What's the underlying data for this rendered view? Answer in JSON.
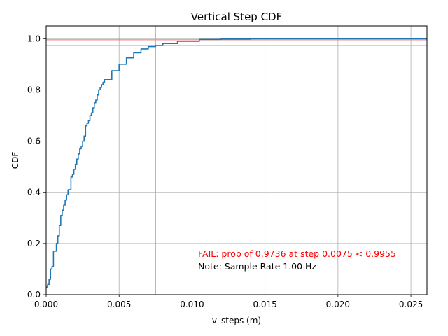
{
  "chart_data": {
    "type": "line",
    "title": "Vertical Step CDF",
    "xlabel": "v_steps (m)",
    "ylabel": "CDF",
    "xlim": [
      0,
      0.0261
    ],
    "ylim": [
      0,
      1.05
    ],
    "grid": true,
    "x_ticks": [
      {
        "value": 0.0,
        "label": "0.000"
      },
      {
        "value": 0.005,
        "label": "0.005"
      },
      {
        "value": 0.01,
        "label": "0.010"
      },
      {
        "value": 0.015,
        "label": "0.015"
      },
      {
        "value": 0.02,
        "label": "0.020"
      },
      {
        "value": 0.025,
        "label": "0.025"
      }
    ],
    "y_ticks": [
      {
        "value": 0.0,
        "label": "0.0"
      },
      {
        "value": 0.2,
        "label": "0.2"
      },
      {
        "value": 0.4,
        "label": "0.4"
      },
      {
        "value": 0.6,
        "label": "0.6"
      },
      {
        "value": 0.8,
        "label": "0.8"
      },
      {
        "value": 1.0,
        "label": "1.0"
      }
    ],
    "series": [
      {
        "color": "#1f77b4",
        "step": true,
        "points": [
          [
            0.0,
            0.03
          ],
          [
            0.0001,
            0.04
          ],
          [
            0.0002,
            0.06
          ],
          [
            0.0003,
            0.08
          ],
          [
            0.0003,
            0.1
          ],
          [
            0.0004,
            0.11
          ],
          [
            0.0005,
            0.13
          ],
          [
            0.0005,
            0.17
          ],
          [
            0.0007,
            0.18
          ],
          [
            0.0007,
            0.2
          ],
          [
            0.0008,
            0.21
          ],
          [
            0.0008,
            0.23
          ],
          [
            0.0009,
            0.25
          ],
          [
            0.0009,
            0.27
          ],
          [
            0.001,
            0.29
          ],
          [
            0.001,
            0.31
          ],
          [
            0.0011,
            0.33
          ],
          [
            0.0012,
            0.35
          ],
          [
            0.0013,
            0.37
          ],
          [
            0.0014,
            0.39
          ],
          [
            0.0015,
            0.41
          ],
          [
            0.0017,
            0.42
          ],
          [
            0.0017,
            0.46
          ],
          [
            0.0018,
            0.47
          ],
          [
            0.0019,
            0.49
          ],
          [
            0.002,
            0.51
          ],
          [
            0.0021,
            0.53
          ],
          [
            0.0022,
            0.55
          ],
          [
            0.0023,
            0.57
          ],
          [
            0.0024,
            0.58
          ],
          [
            0.0025,
            0.6
          ],
          [
            0.0026,
            0.62
          ],
          [
            0.0027,
            0.66
          ],
          [
            0.0028,
            0.67
          ],
          [
            0.0029,
            0.68
          ],
          [
            0.003,
            0.7
          ],
          [
            0.0031,
            0.71
          ],
          [
            0.0032,
            0.73
          ],
          [
            0.0033,
            0.75
          ],
          [
            0.0034,
            0.76
          ],
          [
            0.0035,
            0.78
          ],
          [
            0.0036,
            0.8
          ],
          [
            0.0037,
            0.81
          ],
          [
            0.0038,
            0.82
          ],
          [
            0.0039,
            0.83
          ],
          [
            0.004,
            0.84
          ],
          [
            0.0045,
            0.875
          ],
          [
            0.005,
            0.9
          ],
          [
            0.0055,
            0.925
          ],
          [
            0.006,
            0.945
          ],
          [
            0.0065,
            0.96
          ],
          [
            0.007,
            0.969
          ],
          [
            0.0075,
            0.9736
          ],
          [
            0.008,
            0.981
          ],
          [
            0.009,
            0.99
          ],
          [
            0.0105,
            0.997
          ],
          [
            0.012,
            0.999
          ],
          [
            0.014,
            1.0
          ],
          [
            0.0261,
            1.0
          ]
        ]
      }
    ],
    "hlines": [
      {
        "y": 0.9955,
        "color": "#e8706b"
      },
      {
        "y": 0.9736,
        "color": "#5ec7d8"
      }
    ],
    "vlines": [
      {
        "x": 0.0075,
        "color": "#5ec7d8"
      }
    ],
    "annotations": [
      {
        "text": "FAIL: prob of 0.9736 at step 0.0075 < 0.9955",
        "color": "#ff0000"
      },
      {
        "text": "Note: Sample Rate 1.00 Hz",
        "color": "#000000"
      }
    ]
  }
}
